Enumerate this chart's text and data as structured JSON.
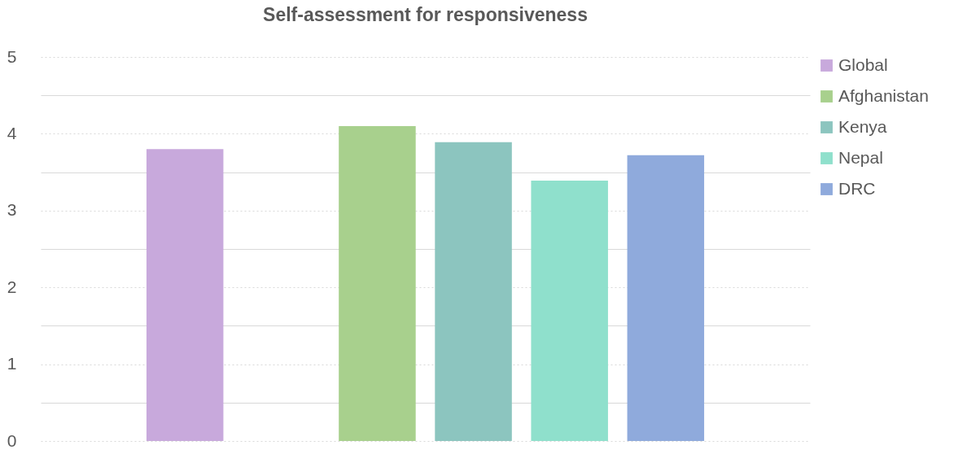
{
  "chart_data": {
    "type": "bar",
    "title": "Self-assessment for responsiveness",
    "categories": [
      null,
      null,
      null,
      null,
      null,
      null,
      null,
      null
    ],
    "series": [
      {
        "name": "Global",
        "color": "#c8a9dc",
        "values": [
          null,
          3.8,
          null,
          null,
          null,
          null,
          null,
          null
        ]
      },
      {
        "name": "Afghanistan",
        "color": "#a8d08d",
        "values": [
          null,
          null,
          null,
          4.1,
          null,
          null,
          null,
          null
        ]
      },
      {
        "name": "Kenya",
        "color": "#8cc5bf",
        "values": [
          null,
          null,
          null,
          null,
          3.89,
          null,
          null,
          null
        ]
      },
      {
        "name": "Nepal",
        "color": "#8fe0cc",
        "values": [
          null,
          null,
          null,
          null,
          null,
          3.39,
          null,
          null
        ]
      },
      {
        "name": "DRC",
        "color": "#8faadc",
        "values": [
          null,
          null,
          null,
          null,
          null,
          null,
          3.72,
          null
        ]
      }
    ],
    "ylim": [
      0,
      5
    ],
    "yticks": [
      0,
      {
        "value": 0.5,
        "label": null
      },
      1,
      {
        "value": 1.5,
        "label": null
      },
      2,
      {
        "value": 2.5,
        "label": null
      },
      3,
      {
        "value": 3.5,
        "label": null
      },
      4,
      {
        "value": 4.5,
        "label": null
      },
      5
    ],
    "grid": "y",
    "legend": "right",
    "tick_labels": "y"
  }
}
